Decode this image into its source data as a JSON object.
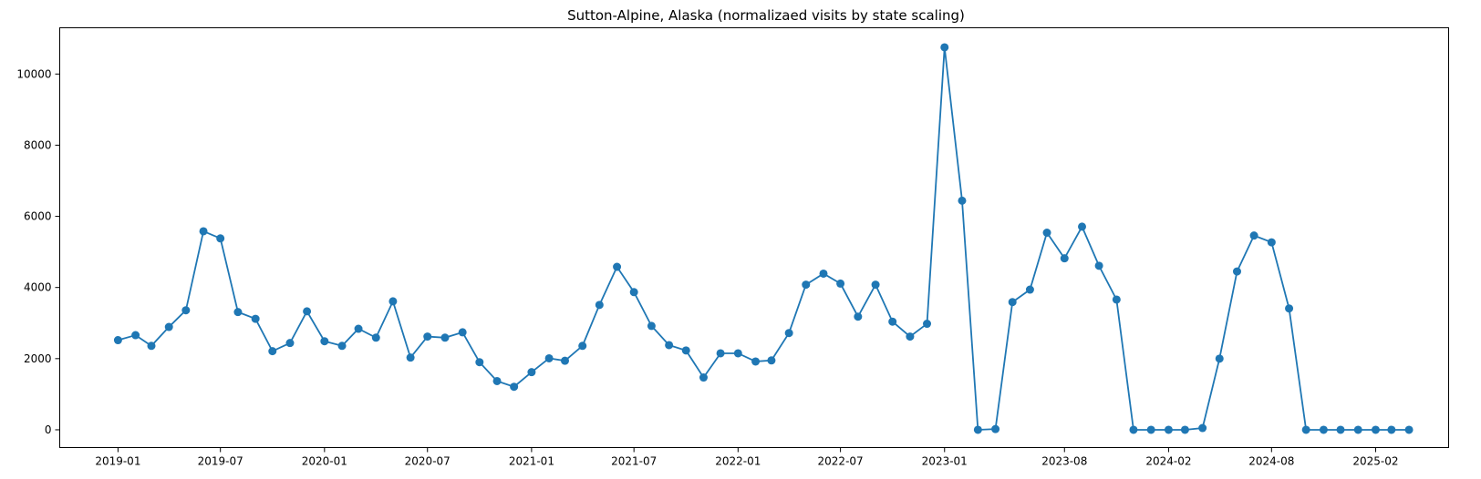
{
  "chart_data": {
    "type": "line",
    "title": "Sutton-Alpine, Alaska (normalizaed visits by state scaling)",
    "xlabel": "",
    "ylabel": "",
    "grid": false,
    "ylim": [
      -500,
      11300
    ],
    "xlim": [
      "2018-09-20",
      "2025-06-10"
    ],
    "x_ticks": [
      "2019-01",
      "2019-07",
      "2020-01",
      "2020-07",
      "2021-01",
      "2021-07",
      "2022-01",
      "2022-07",
      "2023-01",
      "2023-08",
      "2024-02",
      "2024-08",
      "2025-02"
    ],
    "y_ticks": [
      0,
      2000,
      4000,
      6000,
      8000,
      10000
    ],
    "series": [
      {
        "color": "#1f77b4",
        "marker": "circle",
        "x": [
          "2019-01",
          "2019-02",
          "2019-03",
          "2019-04",
          "2019-05",
          "2019-06",
          "2019-07",
          "2019-08",
          "2019-09",
          "2019-10",
          "2019-11",
          "2019-12",
          "2020-01",
          "2020-02",
          "2020-03",
          "2020-04",
          "2020-05",
          "2020-06",
          "2020-07",
          "2020-08",
          "2020-09",
          "2020-10",
          "2020-11",
          "2020-12",
          "2021-01",
          "2021-02",
          "2021-03",
          "2021-04",
          "2021-05",
          "2021-06",
          "2021-07",
          "2021-08",
          "2021-09",
          "2021-10",
          "2021-11",
          "2021-12",
          "2022-01",
          "2022-02",
          "2022-03",
          "2022-04",
          "2022-05",
          "2022-06",
          "2022-07",
          "2022-08",
          "2022-09",
          "2022-10",
          "2022-11",
          "2022-12",
          "2023-01",
          "2023-02",
          "2023-03",
          "2023-04",
          "2023-05",
          "2023-06",
          "2023-07",
          "2023-08",
          "2023-09",
          "2023-10",
          "2023-11",
          "2023-12",
          "2024-01",
          "2024-02",
          "2024-03",
          "2024-04",
          "2024-05",
          "2024-06",
          "2024-07",
          "2024-08",
          "2024-09",
          "2024-10",
          "2024-11",
          "2024-12",
          "2025-01",
          "2025-02",
          "2025-03",
          "2025-04"
        ],
        "values": [
          2520,
          2660,
          2360,
          2890,
          3360,
          5580,
          5380,
          3310,
          3120,
          2210,
          2440,
          3330,
          2490,
          2360,
          2840,
          2590,
          3610,
          2030,
          2620,
          2590,
          2740,
          1900,
          1370,
          1210,
          1620,
          2010,
          1940,
          2360,
          3510,
          4580,
          3870,
          2920,
          2380,
          2230,
          1470,
          2150,
          2150,
          1920,
          1950,
          2720,
          4080,
          4390,
          4110,
          3180,
          4080,
          3040,
          2620,
          2980,
          10750,
          6440,
          0,
          20,
          3590,
          3940,
          5540,
          4820,
          5710,
          4610,
          3660,
          0,
          0,
          0,
          0,
          50,
          2000,
          4450,
          5460,
          5270,
          3410,
          0,
          0,
          0,
          0,
          0,
          0,
          0
        ]
      }
    ]
  }
}
